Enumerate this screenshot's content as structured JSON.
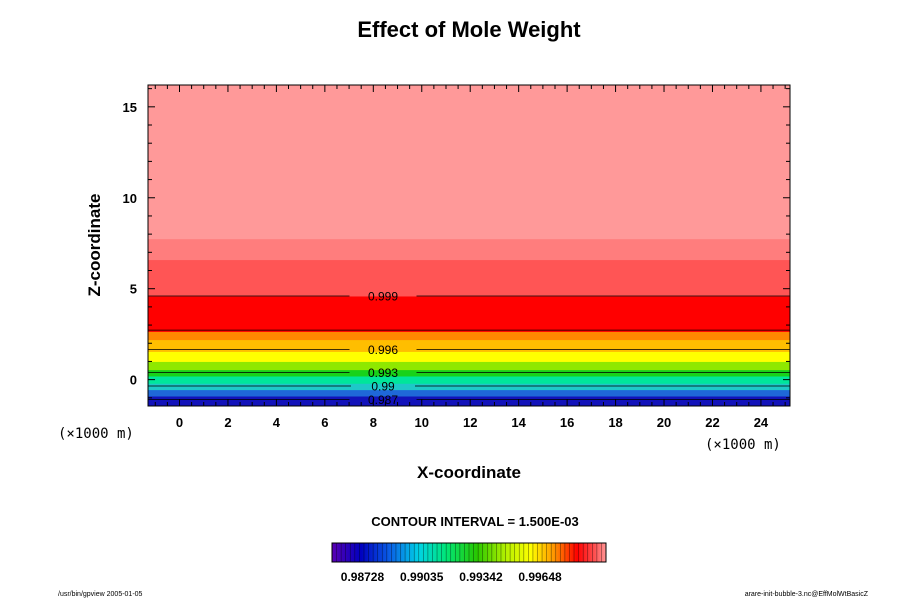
{
  "chart_data": {
    "type": "heatmap",
    "title": "Effect of Mole Weight",
    "xlabel": "X-coordinate",
    "ylabel": "Z-coordinate",
    "x_unit": "(×1000 m)",
    "y_unit": "(×1000 m)",
    "xlim": [
      -1.3,
      25.2
    ],
    "ylim": [
      -1.45,
      16.2
    ],
    "x_ticks": [
      0,
      2,
      4,
      6,
      8,
      10,
      12,
      14,
      16,
      18,
      20,
      22,
      24
    ],
    "y_ticks": [
      0,
      5,
      10,
      15
    ],
    "bands": [
      {
        "z0": -1.45,
        "z1": -0.9,
        "color": "#1212ba"
      },
      {
        "z0": -0.9,
        "z1": -0.55,
        "color": "#1f68d8"
      },
      {
        "z0": -0.55,
        "z1": -0.2,
        "color": "#1ec8c8"
      },
      {
        "z0": -0.2,
        "z1": 0.2,
        "color": "#00e69b"
      },
      {
        "z0": 0.2,
        "z1": 0.55,
        "color": "#18d21a"
      },
      {
        "z0": 0.55,
        "z1": 1.0,
        "color": "#8fe800"
      },
      {
        "z0": 1.0,
        "z1": 1.55,
        "color": "#ffff00"
      },
      {
        "z0": 1.55,
        "z1": 2.2,
        "color": "#ffbe00"
      },
      {
        "z0": 2.2,
        "z1": 2.65,
        "color": "#ff8800"
      },
      {
        "z0": 2.65,
        "z1": 4.6,
        "color": "#ff0000"
      },
      {
        "z0": 4.6,
        "z1": 6.6,
        "color": "#ff5555"
      },
      {
        "z0": 6.6,
        "z1": 7.75,
        "color": "#ff7d7d"
      },
      {
        "z0": 7.75,
        "z1": 16.2,
        "color": "#ff9999"
      }
    ],
    "contour_lines": [
      {
        "z": -1.1,
        "label": "0.987"
      },
      {
        "z": -0.35,
        "label": "0.99"
      },
      {
        "z": 0.4,
        "label": "0.993"
      },
      {
        "z": 1.65,
        "label": "0.996"
      },
      {
        "z": 2.72,
        "label": ""
      },
      {
        "z": 4.6,
        "label": "0.999"
      }
    ],
    "contour_label_x": 8.4,
    "contour_interval_text": "CONTOUR INTERVAL = 1.500E-03",
    "colorbar": {
      "min": 0.9857,
      "max": 0.9999,
      "labels": [
        "0.98728",
        "0.99035",
        "0.99342",
        "0.99648"
      ],
      "label_values": [
        0.98728,
        0.99035,
        0.99342,
        0.99648
      ],
      "stops": [
        {
          "v": 0.9857,
          "color": "#5a00b4"
        },
        {
          "v": 0.9872,
          "color": "#0000c0"
        },
        {
          "v": 0.9887,
          "color": "#0a5fe6"
        },
        {
          "v": 0.9902,
          "color": "#00d2e6"
        },
        {
          "v": 0.9916,
          "color": "#00e678"
        },
        {
          "v": 0.9932,
          "color": "#28c800"
        },
        {
          "v": 0.9947,
          "color": "#b4f000"
        },
        {
          "v": 0.996,
          "color": "#ffff00"
        },
        {
          "v": 0.9972,
          "color": "#ff9600"
        },
        {
          "v": 0.9984,
          "color": "#ff0000"
        },
        {
          "v": 0.9993,
          "color": "#ff5050"
        },
        {
          "v": 0.9999,
          "color": "#ff9696"
        }
      ]
    }
  },
  "footer": {
    "left": "/usr/bin/gpview 2005-01-05",
    "right": "arare-init-bubble-3.nc@EffMolWtBasicZ"
  }
}
